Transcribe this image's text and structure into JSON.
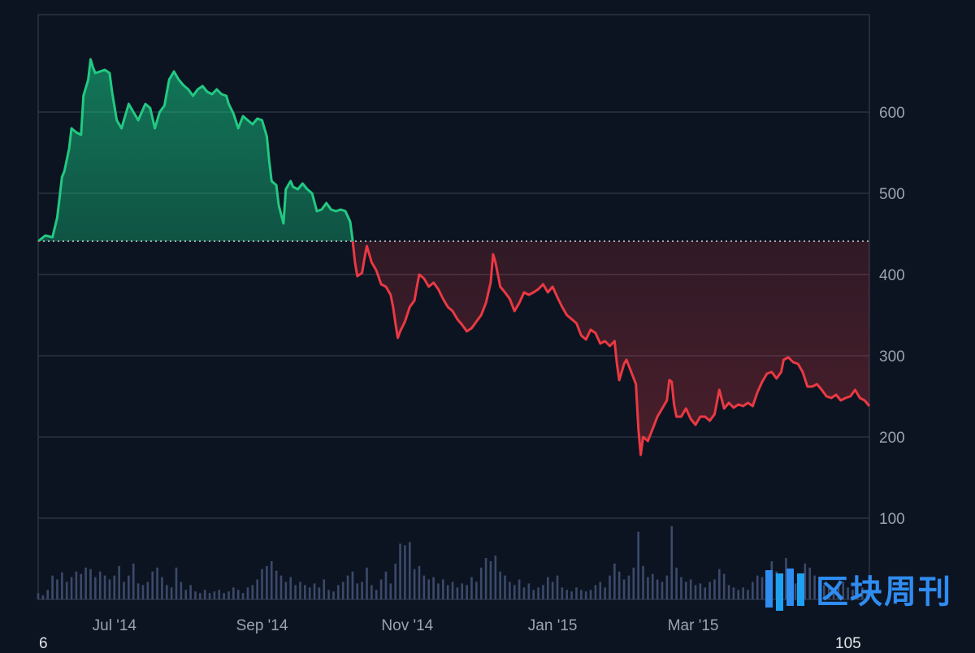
{
  "chart_data": {
    "type": "area",
    "baseline": 441,
    "ylim": [
      0,
      720
    ],
    "y_ticks": [
      100,
      200,
      300,
      400,
      500,
      600
    ],
    "x_ticks": [
      "Jul '14",
      "Sep '14",
      "Nov '14",
      "Jan '15",
      "Mar '15"
    ],
    "x_tick_days": [
      32,
      94,
      155,
      216,
      275
    ],
    "x_range_days": [
      0,
      349
    ],
    "price": [
      [
        0,
        441
      ],
      [
        3,
        448
      ],
      [
        6,
        446
      ],
      [
        8,
        470
      ],
      [
        10,
        520
      ],
      [
        11,
        527
      ],
      [
        13,
        555
      ],
      [
        14,
        580
      ],
      [
        16,
        575
      ],
      [
        18,
        572
      ],
      [
        19,
        620
      ],
      [
        21,
        640
      ],
      [
        22,
        665
      ],
      [
        23,
        655
      ],
      [
        24,
        648
      ],
      [
        26,
        650
      ],
      [
        28,
        652
      ],
      [
        30,
        648
      ],
      [
        31,
        625
      ],
      [
        33,
        590
      ],
      [
        35,
        580
      ],
      [
        36,
        590
      ],
      [
        38,
        610
      ],
      [
        40,
        600
      ],
      [
        42,
        590
      ],
      [
        45,
        610
      ],
      [
        47,
        605
      ],
      [
        49,
        580
      ],
      [
        51,
        600
      ],
      [
        53,
        608
      ],
      [
        55,
        640
      ],
      [
        57,
        650
      ],
      [
        59,
        640
      ],
      [
        61,
        633
      ],
      [
        63,
        628
      ],
      [
        65,
        620
      ],
      [
        67,
        628
      ],
      [
        69,
        632
      ],
      [
        71,
        625
      ],
      [
        73,
        622
      ],
      [
        75,
        628
      ],
      [
        77,
        622
      ],
      [
        79,
        620
      ],
      [
        80,
        610
      ],
      [
        82,
        598
      ],
      [
        84,
        580
      ],
      [
        86,
        595
      ],
      [
        88,
        590
      ],
      [
        90,
        585
      ],
      [
        92,
        592
      ],
      [
        94,
        590
      ],
      [
        96,
        570
      ],
      [
        97,
        540
      ],
      [
        98,
        515
      ],
      [
        100,
        510
      ],
      [
        101,
        485
      ],
      [
        103,
        463
      ],
      [
        104,
        505
      ],
      [
        106,
        515
      ],
      [
        107,
        508
      ],
      [
        109,
        505
      ],
      [
        111,
        512
      ],
      [
        113,
        505
      ],
      [
        115,
        500
      ],
      [
        117,
        478
      ],
      [
        119,
        480
      ],
      [
        121,
        488
      ],
      [
        123,
        480
      ],
      [
        125,
        478
      ],
      [
        127,
        480
      ],
      [
        129,
        478
      ],
      [
        131,
        465
      ],
      [
        132,
        443
      ],
      [
        133,
        415
      ],
      [
        134,
        398
      ],
      [
        136,
        402
      ],
      [
        137,
        420
      ],
      [
        138,
        435
      ],
      [
        140,
        415
      ],
      [
        142,
        405
      ],
      [
        144,
        388
      ],
      [
        146,
        385
      ],
      [
        148,
        375
      ],
      [
        149,
        360
      ],
      [
        150,
        340
      ],
      [
        151,
        322
      ],
      [
        152,
        330
      ],
      [
        154,
        342
      ],
      [
        156,
        360
      ],
      [
        158,
        368
      ],
      [
        159,
        385
      ],
      [
        160,
        400
      ],
      [
        162,
        395
      ],
      [
        164,
        385
      ],
      [
        166,
        390
      ],
      [
        168,
        382
      ],
      [
        170,
        370
      ],
      [
        172,
        360
      ],
      [
        174,
        355
      ],
      [
        176,
        345
      ],
      [
        178,
        338
      ],
      [
        180,
        330
      ],
      [
        182,
        334
      ],
      [
        184,
        342
      ],
      [
        186,
        350
      ],
      [
        188,
        365
      ],
      [
        190,
        390
      ],
      [
        191,
        425
      ],
      [
        192,
        415
      ],
      [
        194,
        385
      ],
      [
        196,
        378
      ],
      [
        198,
        370
      ],
      [
        200,
        355
      ],
      [
        202,
        365
      ],
      [
        204,
        378
      ],
      [
        206,
        375
      ],
      [
        208,
        378
      ],
      [
        210,
        382
      ],
      [
        212,
        388
      ],
      [
        214,
        378
      ],
      [
        216,
        385
      ],
      [
        218,
        372
      ],
      [
        220,
        360
      ],
      [
        222,
        350
      ],
      [
        224,
        345
      ],
      [
        226,
        340
      ],
      [
        228,
        325
      ],
      [
        230,
        320
      ],
      [
        232,
        332
      ],
      [
        234,
        328
      ],
      [
        236,
        315
      ],
      [
        238,
        318
      ],
      [
        240,
        312
      ],
      [
        242,
        318
      ],
      [
        243,
        290
      ],
      [
        244,
        270
      ],
      [
        246,
        290
      ],
      [
        247,
        295
      ],
      [
        249,
        280
      ],
      [
        251,
        265
      ],
      [
        252,
        210
      ],
      [
        253,
        178
      ],
      [
        254,
        200
      ],
      [
        256,
        195
      ],
      [
        258,
        210
      ],
      [
        260,
        225
      ],
      [
        262,
        235
      ],
      [
        264,
        245
      ],
      [
        265,
        270
      ],
      [
        266,
        268
      ],
      [
        267,
        240
      ],
      [
        268,
        225
      ],
      [
        270,
        225
      ],
      [
        272,
        235
      ],
      [
        274,
        222
      ],
      [
        276,
        215
      ],
      [
        278,
        225
      ],
      [
        280,
        225
      ],
      [
        282,
        220
      ],
      [
        284,
        228
      ],
      [
        286,
        258
      ],
      [
        288,
        235
      ],
      [
        290,
        242
      ],
      [
        292,
        236
      ],
      [
        294,
        240
      ],
      [
        296,
        238
      ],
      [
        298,
        242
      ],
      [
        300,
        238
      ],
      [
        302,
        255
      ],
      [
        304,
        268
      ],
      [
        306,
        278
      ],
      [
        308,
        280
      ],
      [
        310,
        272
      ],
      [
        312,
        280
      ],
      [
        313,
        295
      ],
      [
        315,
        298
      ],
      [
        317,
        292
      ],
      [
        319,
        290
      ],
      [
        321,
        280
      ],
      [
        323,
        262
      ],
      [
        325,
        262
      ],
      [
        327,
        265
      ],
      [
        329,
        258
      ],
      [
        331,
        250
      ],
      [
        333,
        248
      ],
      [
        335,
        252
      ],
      [
        337,
        245
      ],
      [
        339,
        248
      ],
      [
        341,
        250
      ],
      [
        343,
        258
      ],
      [
        345,
        248
      ],
      [
        347,
        245
      ],
      [
        349,
        238
      ]
    ],
    "volume": [
      [
        0,
        8
      ],
      [
        2,
        5
      ],
      [
        4,
        12
      ],
      [
        6,
        30
      ],
      [
        8,
        25
      ],
      [
        10,
        34
      ],
      [
        12,
        22
      ],
      [
        14,
        28
      ],
      [
        16,
        35
      ],
      [
        18,
        32
      ],
      [
        20,
        40
      ],
      [
        22,
        38
      ],
      [
        24,
        28
      ],
      [
        26,
        35
      ],
      [
        28,
        30
      ],
      [
        30,
        25
      ],
      [
        32,
        30
      ],
      [
        34,
        42
      ],
      [
        36,
        22
      ],
      [
        38,
        30
      ],
      [
        40,
        45
      ],
      [
        42,
        20
      ],
      [
        44,
        18
      ],
      [
        46,
        22
      ],
      [
        48,
        35
      ],
      [
        50,
        40
      ],
      [
        52,
        28
      ],
      [
        54,
        18
      ],
      [
        56,
        15
      ],
      [
        58,
        40
      ],
      [
        60,
        22
      ],
      [
        62,
        12
      ],
      [
        64,
        18
      ],
      [
        66,
        10
      ],
      [
        68,
        8
      ],
      [
        70,
        12
      ],
      [
        72,
        8
      ],
      [
        74,
        10
      ],
      [
        76,
        12
      ],
      [
        78,
        8
      ],
      [
        80,
        10
      ],
      [
        82,
        15
      ],
      [
        84,
        12
      ],
      [
        86,
        8
      ],
      [
        88,
        15
      ],
      [
        90,
        18
      ],
      [
        92,
        25
      ],
      [
        94,
        38
      ],
      [
        96,
        42
      ],
      [
        98,
        48
      ],
      [
        100,
        36
      ],
      [
        102,
        30
      ],
      [
        104,
        22
      ],
      [
        106,
        28
      ],
      [
        108,
        18
      ],
      [
        110,
        22
      ],
      [
        112,
        18
      ],
      [
        114,
        15
      ],
      [
        116,
        20
      ],
      [
        118,
        15
      ],
      [
        120,
        25
      ],
      [
        122,
        12
      ],
      [
        124,
        10
      ],
      [
        126,
        18
      ],
      [
        128,
        22
      ],
      [
        130,
        30
      ],
      [
        132,
        35
      ],
      [
        134,
        20
      ],
      [
        136,
        22
      ],
      [
        138,
        40
      ],
      [
        140,
        18
      ],
      [
        142,
        12
      ],
      [
        144,
        25
      ],
      [
        146,
        35
      ],
      [
        148,
        20
      ],
      [
        150,
        45
      ],
      [
        152,
        70
      ],
      [
        154,
        68
      ],
      [
        156,
        72
      ],
      [
        158,
        38
      ],
      [
        160,
        42
      ],
      [
        162,
        30
      ],
      [
        164,
        25
      ],
      [
        166,
        28
      ],
      [
        168,
        20
      ],
      [
        170,
        25
      ],
      [
        172,
        18
      ],
      [
        174,
        22
      ],
      [
        176,
        15
      ],
      [
        178,
        20
      ],
      [
        180,
        18
      ],
      [
        182,
        28
      ],
      [
        184,
        22
      ],
      [
        186,
        40
      ],
      [
        188,
        52
      ],
      [
        190,
        48
      ],
      [
        192,
        55
      ],
      [
        194,
        35
      ],
      [
        196,
        30
      ],
      [
        198,
        22
      ],
      [
        200,
        18
      ],
      [
        202,
        25
      ],
      [
        204,
        15
      ],
      [
        206,
        20
      ],
      [
        208,
        12
      ],
      [
        210,
        15
      ],
      [
        212,
        18
      ],
      [
        214,
        28
      ],
      [
        216,
        22
      ],
      [
        218,
        30
      ],
      [
        220,
        15
      ],
      [
        222,
        12
      ],
      [
        224,
        10
      ],
      [
        226,
        15
      ],
      [
        228,
        12
      ],
      [
        230,
        10
      ],
      [
        232,
        12
      ],
      [
        234,
        18
      ],
      [
        236,
        22
      ],
      [
        238,
        15
      ],
      [
        240,
        30
      ],
      [
        242,
        45
      ],
      [
        244,
        35
      ],
      [
        246,
        25
      ],
      [
        248,
        30
      ],
      [
        250,
        40
      ],
      [
        252,
        85
      ],
      [
        254,
        42
      ],
      [
        256,
        28
      ],
      [
        258,
        32
      ],
      [
        260,
        25
      ],
      [
        262,
        22
      ],
      [
        264,
        30
      ],
      [
        266,
        92
      ],
      [
        268,
        40
      ],
      [
        270,
        28
      ],
      [
        272,
        22
      ],
      [
        274,
        25
      ],
      [
        276,
        18
      ],
      [
        278,
        20
      ],
      [
        280,
        15
      ],
      [
        282,
        22
      ],
      [
        284,
        25
      ],
      [
        286,
        38
      ],
      [
        288,
        32
      ],
      [
        290,
        18
      ],
      [
        292,
        15
      ],
      [
        294,
        12
      ],
      [
        296,
        15
      ],
      [
        298,
        12
      ],
      [
        300,
        22
      ],
      [
        302,
        30
      ],
      [
        304,
        28
      ],
      [
        306,
        25
      ],
      [
        308,
        48
      ],
      [
        310,
        35
      ],
      [
        312,
        22
      ],
      [
        314,
        52
      ],
      [
        316,
        30
      ],
      [
        318,
        20
      ],
      [
        320,
        25
      ],
      [
        322,
        45
      ],
      [
        324,
        40
      ],
      [
        326,
        30
      ],
      [
        328,
        22
      ],
      [
        330,
        18
      ],
      [
        332,
        15
      ],
      [
        334,
        12
      ],
      [
        336,
        18
      ],
      [
        338,
        22
      ],
      [
        340,
        15
      ],
      [
        342,
        12
      ],
      [
        344,
        18
      ],
      [
        346,
        15
      ],
      [
        348,
        12
      ]
    ],
    "volume_ylim": [
      0,
      100
    ],
    "colors": {
      "up_line": "#22c982",
      "down_line": "#ea3943",
      "up_fill": "#16c784",
      "down_fill": "#ea3943",
      "volume": "#3b4a6b",
      "grid": "#2b3343",
      "baseline_dots": "#d1d5db",
      "background": "#0d1421",
      "axis": "#3a4252"
    }
  },
  "corner_left_label": "6",
  "corner_right_label": "105",
  "watermark": {
    "text": "区块周刊",
    "icon": "book-logo-icon",
    "color": "#2f8cf0"
  }
}
